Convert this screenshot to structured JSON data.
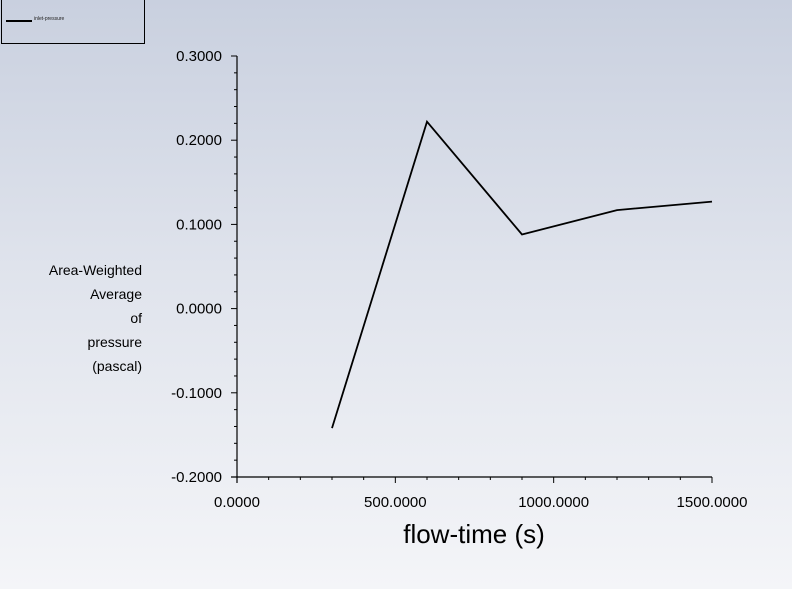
{
  "legend": {
    "entries": [
      "inlet-pressure"
    ]
  },
  "chart_data": {
    "type": "line",
    "xlabel": "flow-time (s)",
    "ylabel_lines": [
      "Area-Weighted",
      "Average",
      "of",
      "pressure",
      "(pascal)"
    ],
    "xlim": [
      0,
      1500
    ],
    "ylim": [
      -0.2,
      0.3
    ],
    "x_ticks": [
      "0.0000",
      "500.0000",
      "1000.0000",
      "1500.0000"
    ],
    "y_ticks": [
      "-0.2000",
      "-0.1000",
      "0.0000",
      "0.1000",
      "0.2000",
      "0.3000"
    ],
    "series": [
      {
        "name": "inlet-pressure",
        "color": "#000000",
        "x": [
          300,
          600,
          900,
          1200,
          1500
        ],
        "y": [
          -0.142,
          0.222,
          0.088,
          0.117,
          0.127
        ]
      }
    ],
    "grid": false,
    "legend_position": "top-left"
  }
}
